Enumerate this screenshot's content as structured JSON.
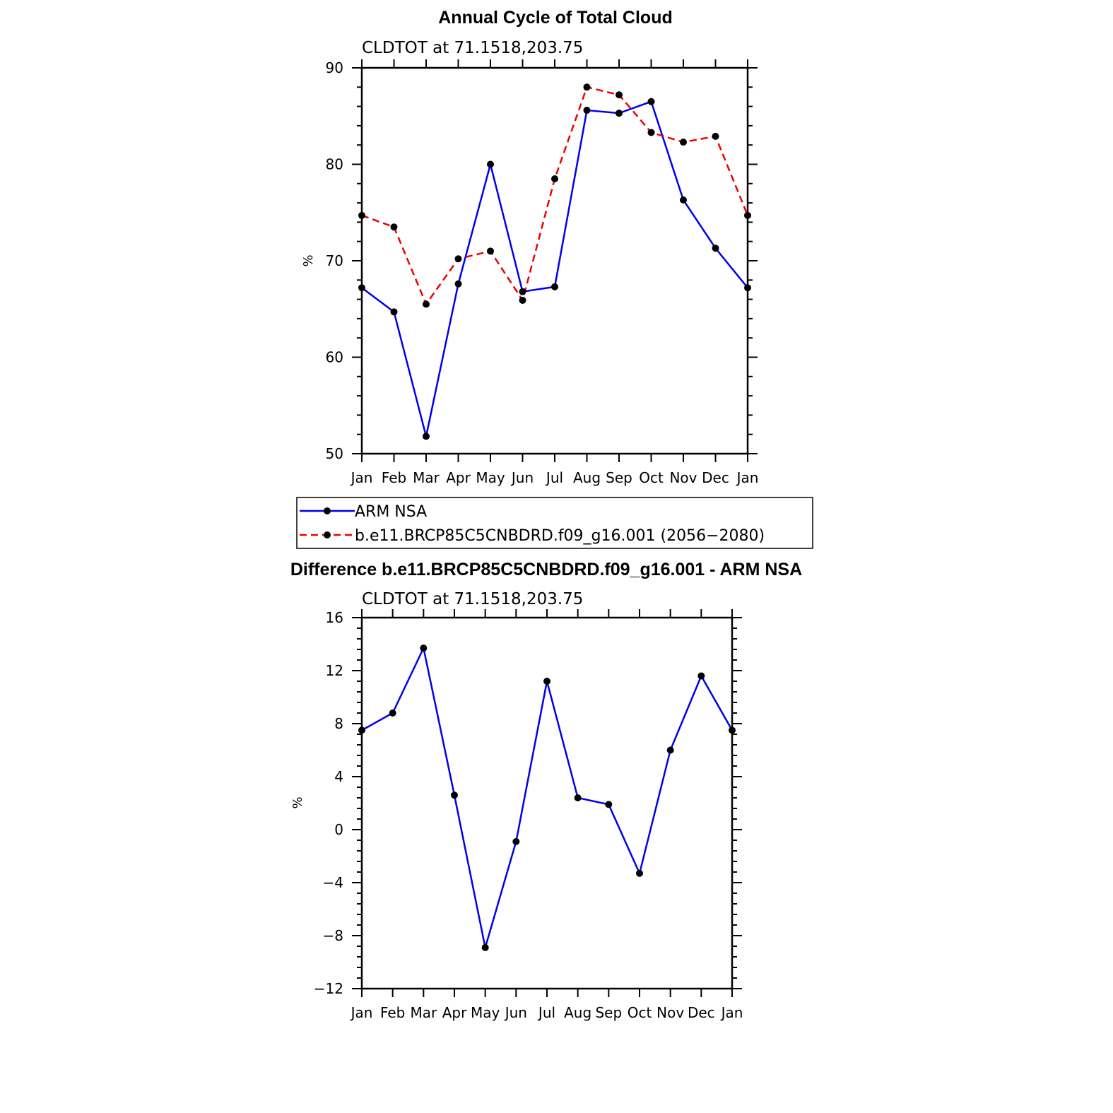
{
  "chart_data": [
    {
      "type": "line",
      "title": "Annual Cycle of Total Cloud",
      "subtitle": "CLDTOT at 71.1518,203.75",
      "ylabel": "%",
      "ylim": [
        50,
        90
      ],
      "yticks": [
        50,
        60,
        70,
        80,
        90
      ],
      "categories": [
        "Jan",
        "Feb",
        "Mar",
        "Apr",
        "May",
        "Jun",
        "Jul",
        "Aug",
        "Sep",
        "Oct",
        "Nov",
        "Dec",
        "Jan"
      ],
      "series": [
        {
          "name": "ARM NSA",
          "color": "#0000ee",
          "dash": "solid",
          "values": [
            67.2,
            64.7,
            51.8,
            67.6,
            80.0,
            66.8,
            67.3,
            85.6,
            85.3,
            86.5,
            76.3,
            71.3,
            67.2
          ]
        },
        {
          "name": "b.e11.BRCP85C5CNBDRD.f09_g16.001 (2056−2080)",
          "color": "#ee0000",
          "dash": "dashed",
          "values": [
            74.7,
            73.5,
            65.5,
            70.2,
            71.0,
            65.9,
            78.5,
            88.0,
            87.2,
            83.3,
            82.3,
            82.9,
            74.7
          ]
        }
      ],
      "legend": "bottom"
    },
    {
      "type": "line",
      "title": "Difference b.e11.BRCP85C5CNBDRD.f09_g16.001 - ARM NSA",
      "subtitle": "CLDTOT at 71.1518,203.75",
      "ylabel": "%",
      "ylim": [
        -12,
        16
      ],
      "yticks": [
        -12,
        -8,
        -4,
        0,
        4,
        8,
        12,
        16
      ],
      "ytick_labels": [
        "−12",
        "−8",
        "−4",
        "0",
        "4",
        "8",
        "12",
        "16"
      ],
      "categories": [
        "Jan",
        "Feb",
        "Mar",
        "Apr",
        "May",
        "Jun",
        "Jul",
        "Aug",
        "Sep",
        "Oct",
        "Nov",
        "Dec",
        "Jan"
      ],
      "series": [
        {
          "color": "#0000ee",
          "dash": "solid",
          "values": [
            7.5,
            8.8,
            13.7,
            2.6,
            -8.9,
            -0.9,
            11.2,
            2.4,
            1.9,
            -3.3,
            6.0,
            11.6,
            7.5
          ]
        }
      ]
    }
  ]
}
